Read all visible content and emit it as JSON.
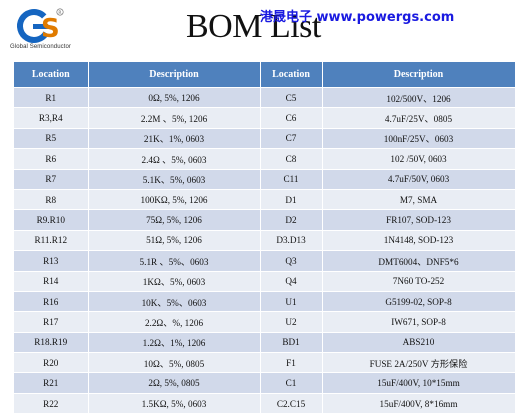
{
  "logo": {
    "company": "Global Semiconductor",
    "mark": "GS",
    "registered": "®"
  },
  "title": "BOM List",
  "site": "港晟电子  www.powergs.com",
  "table": {
    "headers": [
      "Location",
      "Description",
      "Location",
      "Description"
    ],
    "rows": [
      [
        "R1",
        "0Ω, 5%, 1206",
        "C5",
        "102/500V、1206"
      ],
      [
        "R3,R4",
        "2.2M 、5%, 1206",
        "C6",
        "4.7uF/25V、0805"
      ],
      [
        "R5",
        "21K、1%, 0603",
        "C7",
        "100nF/25V、0603"
      ],
      [
        "R6",
        "2.4Ω 、5%, 0603",
        "C8",
        "102 /50V, 0603"
      ],
      [
        "R7",
        "5.1K、5%, 0603",
        "C11",
        "4.7uF/50V, 0603"
      ],
      [
        "R8",
        "100KΩ, 5%, 1206",
        "D1",
        "M7, SMA"
      ],
      [
        "R9.R10",
        "75Ω, 5%, 1206",
        "D2",
        "FR107, SOD-123"
      ],
      [
        "R11.R12",
        "51Ω, 5%, 1206",
        "D3.D13",
        "1N4148, SOD-123"
      ],
      [
        "R13",
        "5.1R 、5%、0603",
        "Q3",
        "DMT6004、DNF5*6"
      ],
      [
        "R14",
        "1KΩ、5%, 0603",
        "Q4",
        "7N60 TO-252"
      ],
      [
        "R16",
        "10K、5%、0603",
        "U1",
        "G5199-02, SOP-8"
      ],
      [
        "R17",
        "2.2Ω、%, 1206",
        "U2",
        "IW671, SOP-8"
      ],
      [
        "R18.R19",
        "1.2Ω、1%, 1206",
        "BD1",
        "ABS210"
      ],
      [
        "R20",
        "10Ω、5%, 0805",
        "F1",
        "FUSE 2A/250V  方形保险"
      ],
      [
        "R21",
        "2Ω, 5%, 0805",
        "C1",
        "15uF/400V, 10*15mm"
      ],
      [
        "R22",
        "1.5KΩ, 5%, 0603",
        "C2.C15",
        "15uF/400V, 8*16mm"
      ]
    ]
  },
  "colors": {
    "header": "#4f81bd",
    "row_odd": "#d1d9ea",
    "row_even": "#e9edf4",
    "site_text": "#1a1ae0"
  }
}
